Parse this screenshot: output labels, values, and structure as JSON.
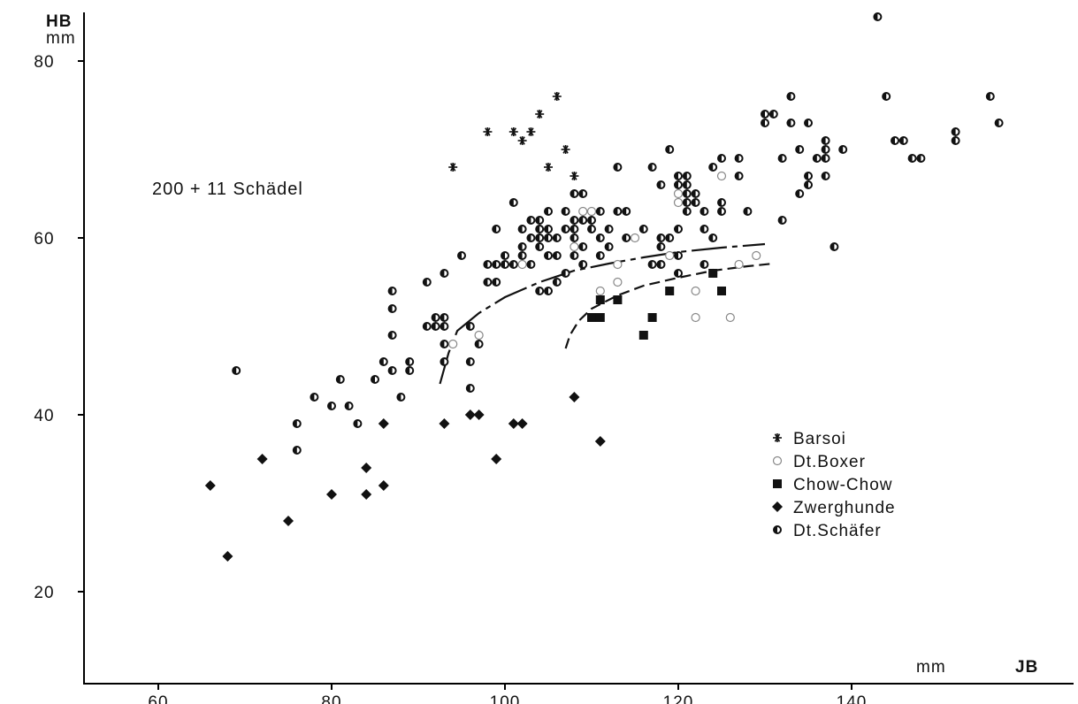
{
  "chart_data": {
    "type": "scatter",
    "title": "",
    "annotation": "200 + 11 Schädel",
    "ylabel_line1": "HB",
    "ylabel_line2": "mm",
    "xlabel_unit": "mm",
    "xlabel": "JB",
    "xlim": [
      50,
      154
    ],
    "ylim": [
      10,
      88
    ],
    "x_ticks": [
      60,
      80,
      100,
      120,
      140
    ],
    "y_ticks": [
      20,
      40,
      60,
      80
    ],
    "grid": false,
    "legend_position": "lower-right",
    "series": [
      {
        "name": "Barsoi",
        "marker": "asterisk",
        "points": [
          [
            94,
            68
          ],
          [
            98,
            72
          ],
          [
            101,
            72
          ],
          [
            102,
            71
          ],
          [
            103,
            72
          ],
          [
            104,
            74
          ],
          [
            105,
            68
          ],
          [
            106,
            76
          ],
          [
            107,
            70
          ],
          [
            108,
            67
          ]
        ]
      },
      {
        "name": "Dt.Boxer",
        "marker": "open-circle",
        "points": [
          [
            94,
            48
          ],
          [
            97,
            49
          ],
          [
            102,
            57
          ],
          [
            108,
            59
          ],
          [
            109,
            63
          ],
          [
            110,
            63
          ],
          [
            111,
            54
          ],
          [
            113,
            55
          ],
          [
            113,
            57
          ],
          [
            115,
            60
          ],
          [
            118,
            57
          ],
          [
            119,
            58
          ],
          [
            120,
            64
          ],
          [
            120,
            65
          ],
          [
            122,
            51
          ],
          [
            122,
            54
          ],
          [
            124,
            56
          ],
          [
            125,
            67
          ],
          [
            126,
            51
          ],
          [
            127,
            57
          ],
          [
            129,
            58
          ]
        ]
      },
      {
        "name": "Chow-Chow",
        "marker": "filled-square",
        "points": [
          [
            110,
            51
          ],
          [
            111,
            51
          ],
          [
            111,
            53
          ],
          [
            113,
            53
          ],
          [
            116,
            49
          ],
          [
            117,
            51
          ],
          [
            119,
            54
          ],
          [
            124,
            56
          ],
          [
            125,
            54
          ]
        ]
      },
      {
        "name": "Zwerghunde",
        "marker": "filled-diamond",
        "points": [
          [
            66,
            32
          ],
          [
            68,
            24
          ],
          [
            72,
            35
          ],
          [
            75,
            28
          ],
          [
            80,
            31
          ],
          [
            84,
            31
          ],
          [
            84,
            34
          ],
          [
            86,
            32
          ],
          [
            86,
            39
          ],
          [
            93,
            39
          ],
          [
            96,
            40
          ],
          [
            97,
            40
          ],
          [
            99,
            35
          ],
          [
            101,
            39
          ],
          [
            102,
            39
          ],
          [
            108,
            42
          ],
          [
            111,
            37
          ]
        ]
      },
      {
        "name": "Dt.Schäfer",
        "marker": "half-filled-circle",
        "points": [
          [
            69,
            45
          ],
          [
            76,
            36
          ],
          [
            76,
            39
          ],
          [
            78,
            42
          ],
          [
            80,
            41
          ],
          [
            81,
            44
          ],
          [
            82,
            41
          ],
          [
            83,
            39
          ],
          [
            85,
            44
          ],
          [
            86,
            46
          ],
          [
            87,
            45
          ],
          [
            87,
            49
          ],
          [
            87,
            52
          ],
          [
            87,
            54
          ],
          [
            88,
            42
          ],
          [
            89,
            45
          ],
          [
            89,
            46
          ],
          [
            91,
            50
          ],
          [
            92,
            50
          ],
          [
            92,
            51
          ],
          [
            91,
            55
          ],
          [
            93,
            51
          ],
          [
            93,
            50
          ],
          [
            93,
            48
          ],
          [
            93,
            46
          ],
          [
            93,
            56
          ],
          [
            95,
            58
          ],
          [
            96,
            50
          ],
          [
            96,
            46
          ],
          [
            96,
            43
          ],
          [
            97,
            48
          ],
          [
            98,
            55
          ],
          [
            98,
            57
          ],
          [
            99,
            55
          ],
          [
            99,
            57
          ],
          [
            99,
            61
          ],
          [
            100,
            57
          ],
          [
            100,
            58
          ],
          [
            101,
            57
          ],
          [
            101,
            64
          ],
          [
            102,
            58
          ],
          [
            102,
            59
          ],
          [
            102,
            61
          ],
          [
            103,
            57
          ],
          [
            103,
            60
          ],
          [
            103,
            62
          ],
          [
            104,
            54
          ],
          [
            104,
            59
          ],
          [
            104,
            60
          ],
          [
            104,
            61
          ],
          [
            104,
            62
          ],
          [
            105,
            54
          ],
          [
            105,
            58
          ],
          [
            105,
            60
          ],
          [
            105,
            61
          ],
          [
            105,
            63
          ],
          [
            106,
            55
          ],
          [
            106,
            58
          ],
          [
            106,
            60
          ],
          [
            107,
            56
          ],
          [
            107,
            61
          ],
          [
            107,
            63
          ],
          [
            108,
            58
          ],
          [
            108,
            60
          ],
          [
            108,
            61
          ],
          [
            108,
            62
          ],
          [
            108,
            65
          ],
          [
            109,
            57
          ],
          [
            109,
            59
          ],
          [
            109,
            62
          ],
          [
            109,
            65
          ],
          [
            110,
            61
          ],
          [
            110,
            62
          ],
          [
            111,
            58
          ],
          [
            111,
            60
          ],
          [
            111,
            63
          ],
          [
            112,
            59
          ],
          [
            112,
            61
          ],
          [
            113,
            63
          ],
          [
            113,
            68
          ],
          [
            114,
            60
          ],
          [
            114,
            63
          ],
          [
            116,
            61
          ],
          [
            117,
            57
          ],
          [
            117,
            68
          ],
          [
            118,
            57
          ],
          [
            118,
            59
          ],
          [
            118,
            60
          ],
          [
            118,
            66
          ],
          [
            119,
            60
          ],
          [
            119,
            70
          ],
          [
            120,
            56
          ],
          [
            120,
            58
          ],
          [
            120,
            61
          ],
          [
            120,
            66
          ],
          [
            120,
            67
          ],
          [
            121,
            63
          ],
          [
            121,
            64
          ],
          [
            121,
            65
          ],
          [
            121,
            66
          ],
          [
            121,
            67
          ],
          [
            122,
            64
          ],
          [
            122,
            65
          ],
          [
            123,
            63
          ],
          [
            123,
            57
          ],
          [
            123,
            61
          ],
          [
            124,
            60
          ],
          [
            124,
            68
          ],
          [
            125,
            63
          ],
          [
            125,
            64
          ],
          [
            125,
            69
          ],
          [
            127,
            67
          ],
          [
            127,
            69
          ],
          [
            128,
            63
          ],
          [
            130,
            73
          ],
          [
            130,
            74
          ],
          [
            131,
            74
          ],
          [
            132,
            62
          ],
          [
            132,
            69
          ],
          [
            133,
            76
          ],
          [
            133,
            73
          ],
          [
            134,
            65
          ],
          [
            134,
            70
          ],
          [
            135,
            66
          ],
          [
            135,
            67
          ],
          [
            135,
            73
          ],
          [
            136,
            69
          ],
          [
            137,
            69
          ],
          [
            137,
            70
          ],
          [
            137,
            71
          ],
          [
            137,
            67
          ],
          [
            138,
            59
          ],
          [
            139,
            70
          ],
          [
            143,
            85
          ],
          [
            144,
            76
          ],
          [
            145,
            71
          ],
          [
            146,
            71
          ],
          [
            147,
            69
          ],
          [
            148,
            69
          ],
          [
            152,
            72
          ],
          [
            152,
            71
          ],
          [
            156,
            76
          ],
          [
            157,
            73
          ]
        ]
      }
    ],
    "curves": [
      {
        "style": "solid-dashed",
        "points": [
          [
            92.5,
            43.5
          ],
          [
            93.5,
            47
          ],
          [
            94.5,
            49.5
          ],
          [
            97,
            51.5
          ],
          [
            100,
            53.3
          ],
          [
            104,
            55
          ],
          [
            108,
            56.3
          ],
          [
            112,
            57.1
          ],
          [
            116,
            57.8
          ],
          [
            120,
            58.4
          ],
          [
            125,
            58.9
          ],
          [
            130,
            59.3
          ]
        ]
      },
      {
        "style": "dashed",
        "points": [
          [
            107,
            47.5
          ],
          [
            107.5,
            49
          ],
          [
            108.5,
            50.6
          ],
          [
            110,
            52
          ],
          [
            113,
            53.5
          ],
          [
            116,
            54.6
          ],
          [
            120,
            55.5
          ],
          [
            124,
            56.3
          ],
          [
            128,
            56.8
          ],
          [
            131,
            57.1
          ]
        ]
      }
    ]
  }
}
